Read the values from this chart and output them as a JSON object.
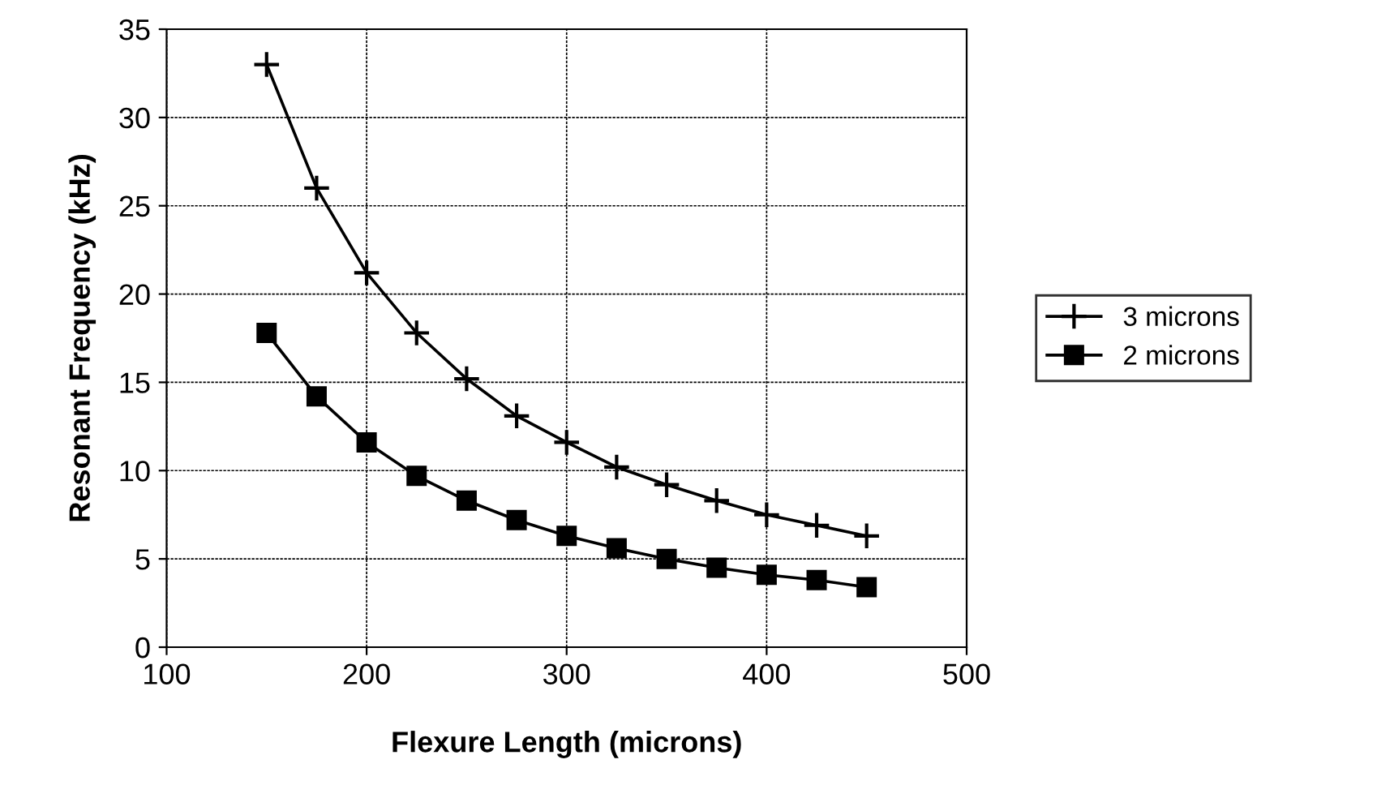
{
  "chart_data": {
    "type": "line",
    "xlabel": "Flexure Length (microns)",
    "ylabel": "Resonant Frequency (kHz)",
    "x": [
      150,
      175,
      200,
      225,
      250,
      275,
      300,
      325,
      350,
      375,
      400,
      425,
      450
    ],
    "series": [
      {
        "name": "3 microns",
        "color": "#000000",
        "marker": "cross",
        "values": [
          33.0,
          26.0,
          21.2,
          17.8,
          15.2,
          13.1,
          11.6,
          10.2,
          9.2,
          8.3,
          7.5,
          6.9,
          6.3
        ]
      },
      {
        "name": "2 microns",
        "color": "#000000",
        "marker": "square",
        "values": [
          17.8,
          14.2,
          11.6,
          9.7,
          8.3,
          7.2,
          6.3,
          5.6,
          5.0,
          4.5,
          4.1,
          3.8,
          3.4
        ]
      }
    ],
    "xlim": [
      100,
      500
    ],
    "xticks": [
      100,
      200,
      300,
      400,
      500
    ],
    "ylim": [
      0,
      35
    ],
    "yticks": [
      0,
      5,
      10,
      15,
      20,
      25,
      30,
      35
    ],
    "grid": true,
    "legend": "right",
    "line_style": "solid"
  }
}
